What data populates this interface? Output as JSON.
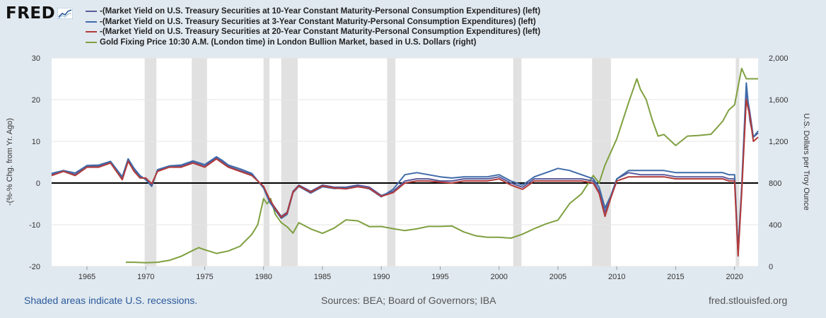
{
  "brand": {
    "logo_text": "FRED"
  },
  "colors": {
    "s10": "#5b5b9b",
    "s3": "#3f6ba8",
    "s20": "#b23a3a",
    "gold": "#7fa040",
    "recession": "#e1e1e1",
    "zero_line": "#000000"
  },
  "footer": {
    "recession_note": "Shaded areas indicate U.S. recessions.",
    "sources": "Sources: BEA; Board of Governors; IBA",
    "site": "fred.stlouisfed.org"
  },
  "chart_data": {
    "type": "line",
    "xlim": [
      1962,
      2022
    ],
    "x_ticks": [
      "1965",
      "1970",
      "1975",
      "1980",
      "1985",
      "1990",
      "1995",
      "2000",
      "2005",
      "2010",
      "2015",
      "2020"
    ],
    "left_axis": {
      "label": "-(%-% Chg. from Yr. Ago)",
      "ylim": [
        -20,
        30
      ],
      "ticks": [
        "-20",
        "-10",
        "0",
        "10",
        "20",
        "30"
      ]
    },
    "right_axis": {
      "label": "U.S. Dollars per Troy Ounce",
      "ylim": [
        0,
        2000
      ],
      "ticks": [
        "0",
        "400",
        "800",
        "1,200",
        "1,600",
        "2,000"
      ]
    },
    "recessions": [
      [
        1969.9,
        1970.9
      ],
      [
        1973.9,
        1975.2
      ],
      [
        1980.0,
        1980.5
      ],
      [
        1981.5,
        1982.9
      ],
      [
        1990.5,
        1991.2
      ],
      [
        2001.2,
        2001.9
      ],
      [
        2007.9,
        2009.5
      ],
      [
        2020.1,
        2020.4
      ]
    ],
    "series": [
      {
        "name": "-(Market Yield on U.S. Treasury Securities at 10-Year Constant Maturity-Personal Consumption Expenditures) (left)",
        "axis": "left",
        "x": [
          1962,
          1963,
          1964,
          1965,
          1966,
          1967,
          1968,
          1968.5,
          1969,
          1969.5,
          1970,
          1970.5,
          1971,
          1972,
          1973,
          1974,
          1975,
          1976,
          1976.5,
          1977,
          1978,
          1979,
          1980,
          1980.5,
          1981,
          1981.5,
          1982,
          1982.5,
          1983,
          1984,
          1985,
          1986,
          1987,
          1988,
          1989,
          1990,
          1991,
          1992,
          1993,
          1994,
          1995,
          1996,
          1997,
          1998,
          1999,
          2000,
          2001,
          2002,
          2003,
          2004,
          2005,
          2006,
          2007,
          2008,
          2008.5,
          2009,
          2009.5,
          2010,
          2011,
          2012,
          2013,
          2014,
          2015,
          2016,
          2017,
          2018,
          2019,
          2019.5,
          2020,
          2020.3,
          2020.6,
          2021,
          2021.3,
          2021.6,
          2022
        ],
        "y": [
          2,
          3,
          2,
          4,
          4,
          5,
          1,
          5.5,
          3,
          1.5,
          1,
          -0.5,
          3,
          4,
          4,
          5,
          4,
          6,
          5,
          4,
          3,
          2,
          -1,
          -4,
          -6,
          -8,
          -7,
          -2,
          -0.5,
          -2,
          -0.5,
          -1,
          -1,
          -0.5,
          -1,
          -3,
          -2,
          0.5,
          1,
          1,
          0.5,
          0.5,
          1,
          1,
          1,
          1.5,
          0,
          -1,
          1,
          1,
          1,
          1,
          1,
          0.5,
          -2,
          -7,
          -3,
          1,
          2.5,
          2,
          2,
          2,
          1.5,
          1.5,
          1.5,
          1.5,
          1.5,
          1,
          1,
          -17,
          -2,
          22,
          17,
          11,
          12
        ]
      },
      {
        "name": "-(Market Yield on U.S. Treasury Securities at 3-Year Constant Maturity-Personal Consumption Expenditures) (left)",
        "axis": "left",
        "x": [
          1962,
          1963,
          1964,
          1965,
          1966,
          1967,
          1968,
          1968.5,
          1969,
          1969.5,
          1970,
          1970.5,
          1971,
          1972,
          1973,
          1974,
          1975,
          1976,
          1976.5,
          1977,
          1978,
          1979,
          1980,
          1980.5,
          1981,
          1981.5,
          1982,
          1982.5,
          1983,
          1984,
          1985,
          1986,
          1987,
          1988,
          1989,
          1990,
          1991,
          1992,
          1993,
          1994,
          1995,
          1996,
          1997,
          1998,
          1999,
          2000,
          2001,
          2002,
          2003,
          2004,
          2005,
          2006,
          2007,
          2008,
          2008.5,
          2009,
          2009.5,
          2010,
          2011,
          2012,
          2013,
          2014,
          2015,
          2016,
          2017,
          2018,
          2019,
          2019.5,
          2020,
          2020.3,
          2020.6,
          2021,
          2021.3,
          2021.6,
          2022
        ],
        "y": [
          2.3,
          3,
          2.4,
          4.2,
          4.3,
          5.2,
          1.5,
          5.8,
          3.5,
          1.8,
          0.8,
          -0.8,
          3.2,
          4.1,
          4.3,
          5.3,
          4.4,
          6.3,
          5.4,
          4.3,
          3.4,
          2.3,
          -1.2,
          -4.5,
          -6.5,
          -8.5,
          -7.5,
          -2.3,
          -0.8,
          -2.4,
          -0.9,
          -1.3,
          -1.2,
          -0.8,
          -1.4,
          -3.3,
          -1.5,
          2,
          2.5,
          2,
          1.5,
          1.2,
          1.5,
          1.5,
          1.5,
          2,
          0.5,
          -0.5,
          1.5,
          2.5,
          3.5,
          3,
          2,
          1,
          -1,
          -6,
          -3,
          1,
          3,
          3,
          3,
          3,
          2.5,
          2.5,
          2.5,
          2.5,
          2.5,
          2,
          2,
          -16,
          -1,
          24,
          15,
          11,
          12.5
        ]
      },
      {
        "name": "-(Market Yield on U.S. Treasury Securities at 20-Year Constant Maturity-Personal Consumption Expenditures) (left)",
        "axis": "left",
        "x": [
          1962,
          1963,
          1964,
          1965,
          1966,
          1967,
          1968,
          1968.5,
          1969,
          1969.5,
          1970,
          1970.5,
          1971,
          1972,
          1973,
          1974,
          1975,
          1976,
          1976.5,
          1977,
          1978,
          1979,
          1980,
          1980.5,
          1981,
          1981.5,
          1982,
          1982.5,
          1983,
          1984,
          1985,
          1986,
          1987,
          1988,
          1989,
          1990,
          1991,
          1992,
          1993,
          1994,
          1995,
          1996,
          1997,
          1998,
          1999,
          2000,
          2001,
          2002,
          2003,
          2004,
          2005,
          2006,
          2007,
          2008,
          2008.5,
          2009,
          2009.5,
          2010,
          2011,
          2012,
          2013,
          2014,
          2015,
          2016,
          2017,
          2018,
          2019,
          2019.5,
          2020,
          2020.3,
          2020.6,
          2021,
          2021.3,
          2021.6,
          2022
        ],
        "y": [
          1.8,
          2.8,
          1.8,
          3.8,
          3.8,
          4.8,
          0.8,
          5.2,
          2.8,
          1.2,
          1.2,
          -0.2,
          2.8,
          3.8,
          3.8,
          4.8,
          3.8,
          5.8,
          4.8,
          3.8,
          2.8,
          1.8,
          -0.8,
          -3.8,
          -6.2,
          -8.2,
          -7.2,
          -2.2,
          -0.7,
          -2.2,
          -0.7,
          -1.2,
          -1.4,
          -0.9,
          -1.3,
          -3.2,
          -2.3,
          0,
          0.5,
          0.5,
          0.2,
          0,
          0.5,
          0.5,
          0.5,
          1,
          -0.5,
          -1.5,
          0.5,
          0.5,
          0.5,
          0.5,
          0.5,
          0,
          -2.5,
          -8,
          -3.5,
          0.5,
          1.5,
          1.5,
          1.5,
          1.5,
          1,
          1,
          1,
          1,
          1,
          0.5,
          0.5,
          -17.5,
          -2.5,
          20,
          16,
          10,
          11
        ]
      },
      {
        "name": "Gold Fixing Price 10:30 A.M. (London time) in London Bullion Market, based in U.S. Dollars (right)",
        "axis": "right",
        "x": [
          1968.3,
          1969,
          1970,
          1971,
          1972,
          1973,
          1974,
          1974.5,
          1975,
          1976,
          1977,
          1978,
          1979,
          1979.5,
          1980,
          1980.3,
          1980.6,
          1981,
          1981.5,
          1982,
          1982.5,
          1983,
          1984,
          1985,
          1986,
          1987,
          1988,
          1989,
          1990,
          1991,
          1992,
          1993,
          1994,
          1995,
          1996,
          1997,
          1998,
          1999,
          2000,
          2001,
          2002,
          2003,
          2004,
          2005,
          2006,
          2007,
          2008,
          2008.5,
          2009,
          2010,
          2011,
          2011.7,
          2012,
          2012.5,
          2013,
          2013.5,
          2014,
          2015,
          2016,
          2017,
          2018,
          2019,
          2019.5,
          2020,
          2020.6,
          2021,
          2022
        ],
        "y": [
          40,
          40,
          36,
          40,
          58,
          97,
          154,
          180,
          160,
          125,
          148,
          193,
          307,
          400,
          650,
          600,
          650,
          500,
          420,
          380,
          320,
          420,
          360,
          317,
          368,
          447,
          437,
          381,
          383,
          362,
          344,
          360,
          384,
          384,
          388,
          331,
          294,
          279,
          279,
          271,
          310,
          363,
          409,
          445,
          604,
          696,
          872,
          800,
          972,
          1225,
          1572,
          1800,
          1700,
          1600,
          1410,
          1250,
          1266,
          1160,
          1250,
          1257,
          1268,
          1393,
          1500,
          1550,
          1900,
          1800,
          1800
        ]
      }
    ]
  }
}
